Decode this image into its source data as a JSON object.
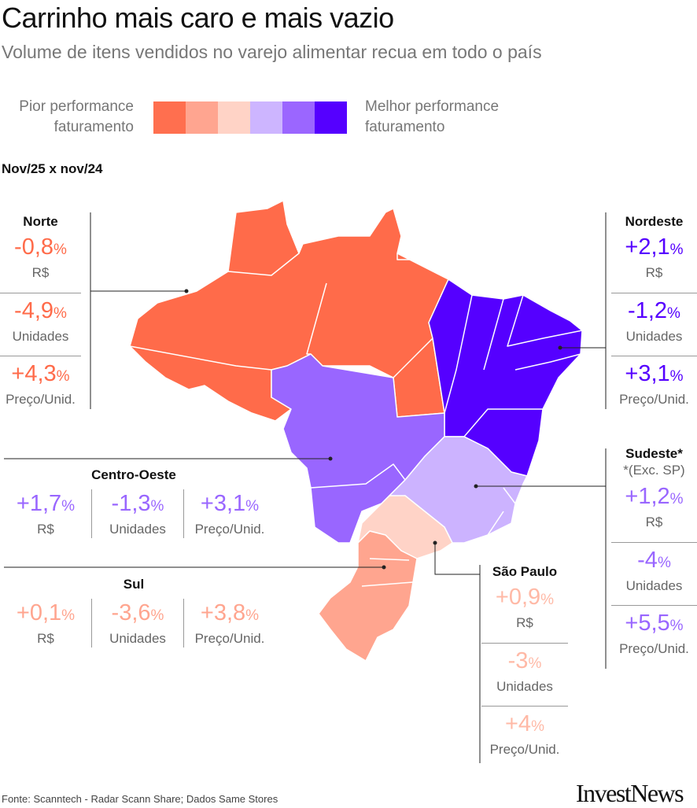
{
  "title": "Carrinho mais caro e mais vazio",
  "subtitle": "Volume de itens vendidos no varejo alimentar recua em todo o país",
  "legend": {
    "left_line1": "Pior performance",
    "left_line2": "faturamento",
    "right_line1": "Melhor performance",
    "right_line2": "faturamento",
    "colors": [
      "#FF6F4F",
      "#FFA590",
      "#FFD3C6",
      "#CDB5FF",
      "#9B66FF",
      "#5500FF"
    ]
  },
  "period": "Nov/25 x nov/24",
  "regions": {
    "norte": {
      "name": "Norte",
      "color": "#FF6B4A",
      "items": [
        {
          "value": "-0,8",
          "unit": "%",
          "label": "R$"
        },
        {
          "value": "-4,9",
          "unit": "%",
          "label": "Unidades"
        },
        {
          "value": "+4,3",
          "unit": "%",
          "label": "Preço/Unid."
        }
      ]
    },
    "nordeste": {
      "name": "Nordeste",
      "color": "#5500FF",
      "items": [
        {
          "value": "+2,1",
          "unit": "%",
          "label": "R$"
        },
        {
          "value": "-1,2",
          "unit": "%",
          "label": "Unidades"
        },
        {
          "value": "+3,1",
          "unit": "%",
          "label": "Preço/Unid."
        }
      ]
    },
    "centro_oeste": {
      "name": "Centro-Oeste",
      "color": "#9966FF",
      "items": [
        {
          "value": "+1,7",
          "unit": "%",
          "label": "R$"
        },
        {
          "value": "-1,3",
          "unit": "%",
          "label": "Unidades"
        },
        {
          "value": "+3,1",
          "unit": "%",
          "label": "Preço/Unid."
        }
      ]
    },
    "sul": {
      "name": "Sul",
      "color": "#FFA58F",
      "items": [
        {
          "value": "+0,1",
          "unit": "%",
          "label": "R$"
        },
        {
          "value": "-3,6",
          "unit": "%",
          "label": "Unidades"
        },
        {
          "value": "+3,8",
          "unit": "%",
          "label": "Preço/Unid."
        }
      ]
    },
    "sudeste": {
      "name": "Sudeste*",
      "note": "*(Exc. SP)",
      "color": "#CCB3FF",
      "text_color": "#9966FF",
      "items": [
        {
          "value": "+1,2",
          "unit": "%",
          "label": "R$"
        },
        {
          "value": "-4",
          "unit": "%",
          "label": "Unidades"
        },
        {
          "value": "+5,5",
          "unit": "%",
          "label": "Preço/Unid."
        }
      ]
    },
    "sao_paulo": {
      "name": "São Paulo",
      "color": "#FFD3C7",
      "text_color": "#FFB9A6",
      "items": [
        {
          "value": "+0,9",
          "unit": "%",
          "label": "R$"
        },
        {
          "value": "-3",
          "unit": "%",
          "label": "Unidades"
        },
        {
          "value": "+4",
          "unit": "%",
          "label": "Preço/Unid."
        }
      ]
    }
  },
  "source": "Fonte: Scanntech - Radar Scann Share; Dados Same Stores",
  "logo": "InvestNews"
}
